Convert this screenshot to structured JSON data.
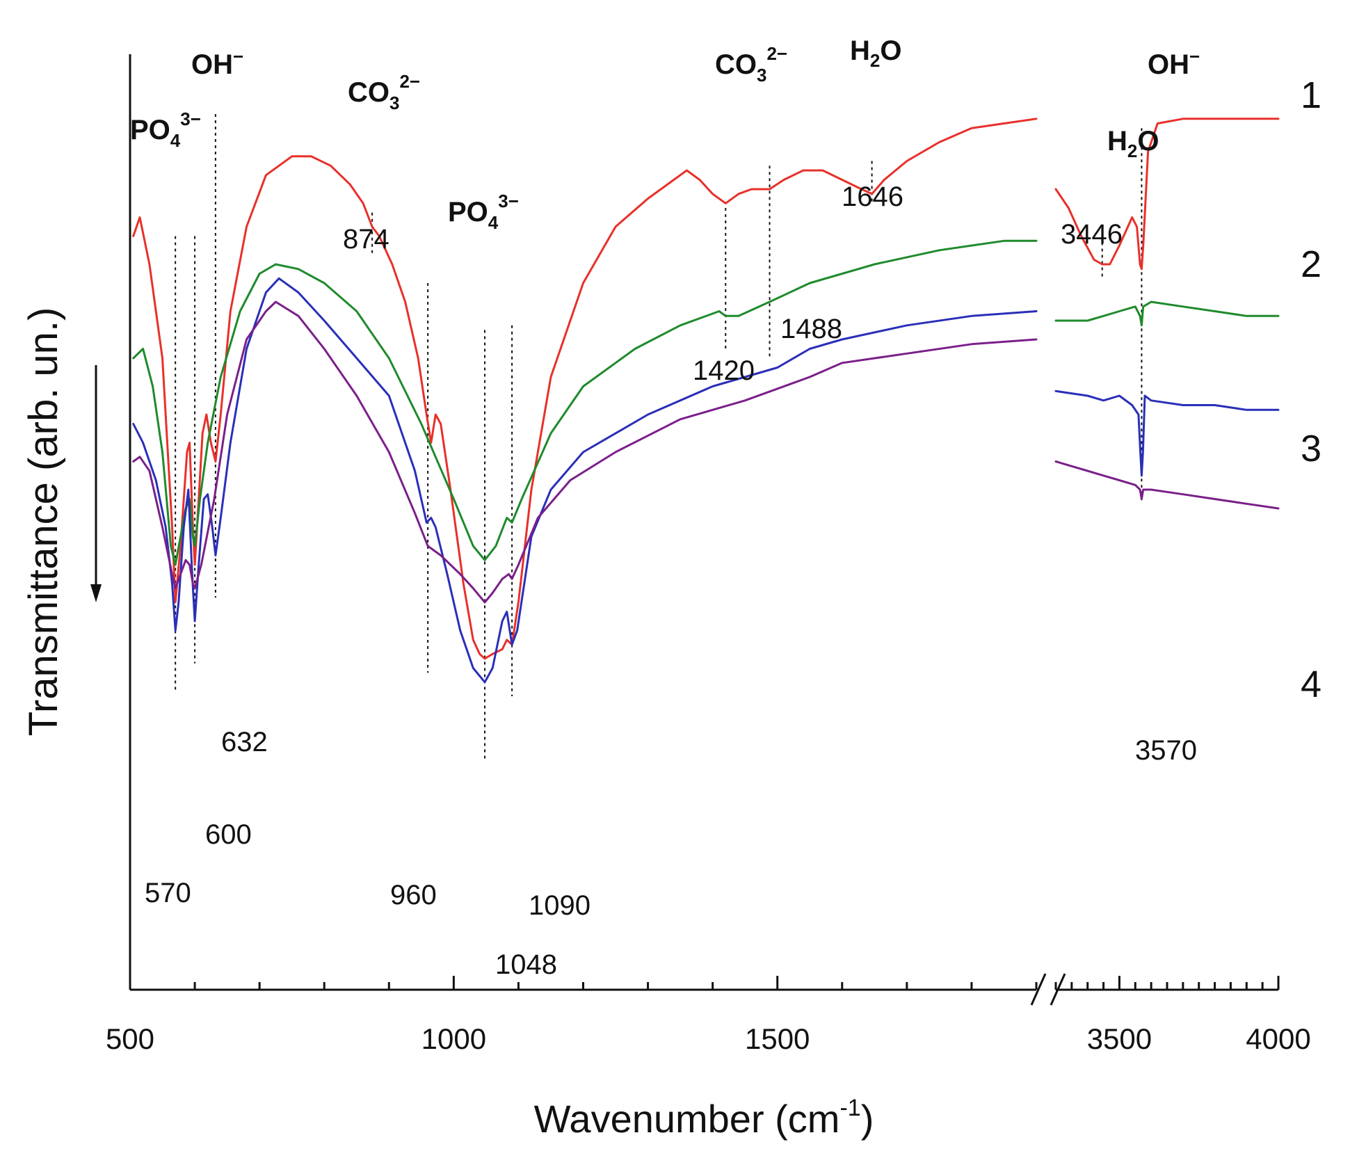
{
  "chart_data": {
    "type": "line",
    "title": "",
    "xlabel": "Wavenumber (cm",
    "xlabel_sup": "-1",
    "xlabel_close": ")",
    "ylabel": "Transmittance (arb. un.)",
    "x_axis": {
      "segments": [
        {
          "range": [
            500,
            1900
          ],
          "major_ticks": [
            500,
            1000,
            1500
          ],
          "minor_step": 100
        },
        {
          "range": [
            3300,
            4000
          ],
          "major_ticks": [
            3500,
            4000
          ],
          "minor_step": 50
        }
      ],
      "tick_labels": [
        "500",
        "1000",
        "1500",
        "3500",
        "4000"
      ],
      "axis_break": true
    },
    "y_axis": {
      "ticks": "none",
      "direction_arrow": "down"
    },
    "colors": {
      "1": "#e8302a",
      "2": "#1f8a2c",
      "3": "#2a2fb8",
      "4": "#7b1f8a"
    },
    "series": [
      {
        "name": "1",
        "color": "#e8302a",
        "points": [
          [
            505,
            0.83
          ],
          [
            515,
            0.85
          ],
          [
            530,
            0.8
          ],
          [
            550,
            0.7
          ],
          [
            565,
            0.52
          ],
          [
            570,
            0.44
          ],
          [
            578,
            0.5
          ],
          [
            588,
            0.6
          ],
          [
            592,
            0.61
          ],
          [
            597,
            0.52
          ],
          [
            600,
            0.48
          ],
          [
            606,
            0.55
          ],
          [
            612,
            0.62
          ],
          [
            618,
            0.64
          ],
          [
            625,
            0.61
          ],
          [
            632,
            0.59
          ],
          [
            640,
            0.64
          ],
          [
            655,
            0.75
          ],
          [
            680,
            0.84
          ],
          [
            710,
            0.895
          ],
          [
            750,
            0.915
          ],
          [
            780,
            0.915
          ],
          [
            810,
            0.905
          ],
          [
            840,
            0.885
          ],
          [
            860,
            0.865
          ],
          [
            874,
            0.84
          ],
          [
            885,
            0.83
          ],
          [
            905,
            0.8
          ],
          [
            925,
            0.76
          ],
          [
            945,
            0.7
          ],
          [
            958,
            0.64
          ],
          [
            965,
            0.61
          ],
          [
            972,
            0.64
          ],
          [
            980,
            0.63
          ],
          [
            995,
            0.56
          ],
          [
            1015,
            0.46
          ],
          [
            1030,
            0.4
          ],
          [
            1040,
            0.385
          ],
          [
            1048,
            0.38
          ],
          [
            1060,
            0.385
          ],
          [
            1075,
            0.39
          ],
          [
            1082,
            0.4
          ],
          [
            1090,
            0.395
          ],
          [
            1100,
            0.44
          ],
          [
            1120,
            0.56
          ],
          [
            1150,
            0.68
          ],
          [
            1200,
            0.78
          ],
          [
            1250,
            0.84
          ],
          [
            1300,
            0.87
          ],
          [
            1340,
            0.89
          ],
          [
            1360,
            0.9
          ],
          [
            1380,
            0.89
          ],
          [
            1400,
            0.875
          ],
          [
            1420,
            0.865
          ],
          [
            1440,
            0.875
          ],
          [
            1460,
            0.88
          ],
          [
            1488,
            0.88
          ],
          [
            1510,
            0.89
          ],
          [
            1540,
            0.9
          ],
          [
            1570,
            0.9
          ],
          [
            1600,
            0.89
          ],
          [
            1630,
            0.88
          ],
          [
            1646,
            0.875
          ],
          [
            1665,
            0.89
          ],
          [
            1700,
            0.91
          ],
          [
            1750,
            0.93
          ],
          [
            1800,
            0.945
          ],
          [
            1850,
            0.95
          ],
          [
            1900,
            0.955
          ],
          [
            3300,
            0.88
          ],
          [
            3340,
            0.86
          ],
          [
            3380,
            0.83
          ],
          [
            3420,
            0.805
          ],
          [
            3446,
            0.8
          ],
          [
            3470,
            0.8
          ],
          [
            3500,
            0.82
          ],
          [
            3540,
            0.85
          ],
          [
            3555,
            0.84
          ],
          [
            3565,
            0.8
          ],
          [
            3570,
            0.795
          ],
          [
            3575,
            0.82
          ],
          [
            3590,
            0.92
          ],
          [
            3620,
            0.95
          ],
          [
            3700,
            0.955
          ],
          [
            3800,
            0.955
          ],
          [
            3900,
            0.955
          ],
          [
            4000,
            0.955
          ]
        ]
      },
      {
        "name": "2",
        "color": "#1f8a2c",
        "points": [
          [
            505,
            0.7
          ],
          [
            520,
            0.71
          ],
          [
            535,
            0.67
          ],
          [
            550,
            0.6
          ],
          [
            563,
            0.5
          ],
          [
            570,
            0.48
          ],
          [
            578,
            0.51
          ],
          [
            586,
            0.54
          ],
          [
            592,
            0.55
          ],
          [
            597,
            0.51
          ],
          [
            600,
            0.5
          ],
          [
            608,
            0.55
          ],
          [
            620,
            0.61
          ],
          [
            640,
            0.68
          ],
          [
            670,
            0.75
          ],
          [
            700,
            0.79
          ],
          [
            725,
            0.8
          ],
          [
            760,
            0.795
          ],
          [
            800,
            0.78
          ],
          [
            850,
            0.75
          ],
          [
            900,
            0.7
          ],
          [
            950,
            0.63
          ],
          [
            1000,
            0.55
          ],
          [
            1030,
            0.5
          ],
          [
            1048,
            0.485
          ],
          [
            1065,
            0.5
          ],
          [
            1082,
            0.53
          ],
          [
            1090,
            0.525
          ],
          [
            1105,
            0.55
          ],
          [
            1150,
            0.62
          ],
          [
            1200,
            0.67
          ],
          [
            1280,
            0.71
          ],
          [
            1350,
            0.735
          ],
          [
            1410,
            0.75
          ],
          [
            1420,
            0.745
          ],
          [
            1440,
            0.745
          ],
          [
            1488,
            0.76
          ],
          [
            1550,
            0.78
          ],
          [
            1650,
            0.8
          ],
          [
            1750,
            0.815
          ],
          [
            1850,
            0.825
          ],
          [
            1900,
            0.825
          ],
          [
            3300,
            0.74
          ],
          [
            3350,
            0.74
          ],
          [
            3400,
            0.74
          ],
          [
            3450,
            0.745
          ],
          [
            3500,
            0.75
          ],
          [
            3550,
            0.755
          ],
          [
            3565,
            0.745
          ],
          [
            3570,
            0.735
          ],
          [
            3575,
            0.755
          ],
          [
            3600,
            0.76
          ],
          [
            3700,
            0.755
          ],
          [
            3800,
            0.75
          ],
          [
            3900,
            0.745
          ],
          [
            4000,
            0.745
          ]
        ]
      },
      {
        "name": "3",
        "color": "#2a2fb8",
        "points": [
          [
            505,
            0.63
          ],
          [
            520,
            0.61
          ],
          [
            540,
            0.57
          ],
          [
            555,
            0.52
          ],
          [
            565,
            0.46
          ],
          [
            570,
            0.41
          ],
          [
            575,
            0.44
          ],
          [
            583,
            0.52
          ],
          [
            590,
            0.56
          ],
          [
            596,
            0.47
          ],
          [
            600,
            0.42
          ],
          [
            606,
            0.48
          ],
          [
            614,
            0.55
          ],
          [
            620,
            0.555
          ],
          [
            627,
            0.52
          ],
          [
            632,
            0.49
          ],
          [
            640,
            0.53
          ],
          [
            655,
            0.61
          ],
          [
            680,
            0.71
          ],
          [
            710,
            0.77
          ],
          [
            730,
            0.785
          ],
          [
            760,
            0.77
          ],
          [
            800,
            0.74
          ],
          [
            850,
            0.7
          ],
          [
            900,
            0.66
          ],
          [
            940,
            0.58
          ],
          [
            958,
            0.525
          ],
          [
            965,
            0.53
          ],
          [
            972,
            0.52
          ],
          [
            990,
            0.47
          ],
          [
            1010,
            0.41
          ],
          [
            1030,
            0.37
          ],
          [
            1048,
            0.355
          ],
          [
            1060,
            0.37
          ],
          [
            1075,
            0.42
          ],
          [
            1082,
            0.43
          ],
          [
            1090,
            0.395
          ],
          [
            1098,
            0.41
          ],
          [
            1120,
            0.51
          ],
          [
            1150,
            0.56
          ],
          [
            1200,
            0.6
          ],
          [
            1300,
            0.64
          ],
          [
            1400,
            0.67
          ],
          [
            1500,
            0.69
          ],
          [
            1550,
            0.71
          ],
          [
            1600,
            0.72
          ],
          [
            1700,
            0.735
          ],
          [
            1800,
            0.745
          ],
          [
            1900,
            0.75
          ],
          [
            3300,
            0.665
          ],
          [
            3400,
            0.66
          ],
          [
            3450,
            0.655
          ],
          [
            3500,
            0.66
          ],
          [
            3540,
            0.65
          ],
          [
            3560,
            0.64
          ],
          [
            3566,
            0.6
          ],
          [
            3570,
            0.575
          ],
          [
            3574,
            0.6
          ],
          [
            3580,
            0.66
          ],
          [
            3600,
            0.655
          ],
          [
            3700,
            0.65
          ],
          [
            3800,
            0.65
          ],
          [
            3900,
            0.645
          ],
          [
            4000,
            0.645
          ]
        ]
      },
      {
        "name": "4",
        "color": "#7b1f8a",
        "points": [
          [
            505,
            0.59
          ],
          [
            515,
            0.595
          ],
          [
            530,
            0.58
          ],
          [
            550,
            0.52
          ],
          [
            565,
            0.47
          ],
          [
            570,
            0.455
          ],
          [
            578,
            0.47
          ],
          [
            586,
            0.485
          ],
          [
            592,
            0.48
          ],
          [
            597,
            0.46
          ],
          [
            600,
            0.455
          ],
          [
            610,
            0.48
          ],
          [
            630,
            0.55
          ],
          [
            650,
            0.64
          ],
          [
            680,
            0.72
          ],
          [
            710,
            0.75
          ],
          [
            725,
            0.76
          ],
          [
            760,
            0.745
          ],
          [
            800,
            0.71
          ],
          [
            850,
            0.66
          ],
          [
            900,
            0.6
          ],
          [
            940,
            0.535
          ],
          [
            960,
            0.5
          ],
          [
            980,
            0.49
          ],
          [
            1010,
            0.47
          ],
          [
            1030,
            0.455
          ],
          [
            1048,
            0.44
          ],
          [
            1060,
            0.45
          ],
          [
            1075,
            0.465
          ],
          [
            1085,
            0.47
          ],
          [
            1090,
            0.465
          ],
          [
            1100,
            0.48
          ],
          [
            1130,
            0.53
          ],
          [
            1180,
            0.57
          ],
          [
            1250,
            0.6
          ],
          [
            1350,
            0.635
          ],
          [
            1450,
            0.655
          ],
          [
            1550,
            0.68
          ],
          [
            1600,
            0.695
          ],
          [
            1700,
            0.705
          ],
          [
            1800,
            0.715
          ],
          [
            1900,
            0.72
          ],
          [
            3300,
            0.59
          ],
          [
            3350,
            0.585
          ],
          [
            3400,
            0.58
          ],
          [
            3450,
            0.575
          ],
          [
            3500,
            0.57
          ],
          [
            3550,
            0.565
          ],
          [
            3565,
            0.56
          ],
          [
            3570,
            0.55
          ],
          [
            3575,
            0.56
          ],
          [
            3600,
            0.56
          ],
          [
            3700,
            0.555
          ],
          [
            3800,
            0.55
          ],
          [
            3900,
            0.545
          ],
          [
            4000,
            0.54
          ]
        ]
      }
    ],
    "curve_labels": [
      "1",
      "2",
      "3",
      "4"
    ],
    "peak_labels": [
      "570",
      "600",
      "632",
      "874",
      "960",
      "1048",
      "1090",
      "1420",
      "1488",
      "1646",
      "3446",
      "3570"
    ],
    "band_labels": {
      "po4_left": {
        "base": "PO",
        "sub": "4",
        "sup": "3−"
      },
      "po4_mid": {
        "base": "PO",
        "sub": "4",
        "sup": "3−"
      },
      "oh_left": {
        "base": "OH",
        "sup": "−"
      },
      "oh_right": {
        "base": "OH",
        "sup": "−"
      },
      "co3_left": {
        "base": "CO",
        "sub": "3",
        "sup": "2−"
      },
      "co3_right": {
        "base": "CO",
        "sub": "3",
        "sup": "2−"
      },
      "h2o_left": {
        "base": "H",
        "sub": "2",
        "tail": "O"
      },
      "h2o_right": {
        "base": "H",
        "sub": "2",
        "tail": "O"
      }
    }
  }
}
